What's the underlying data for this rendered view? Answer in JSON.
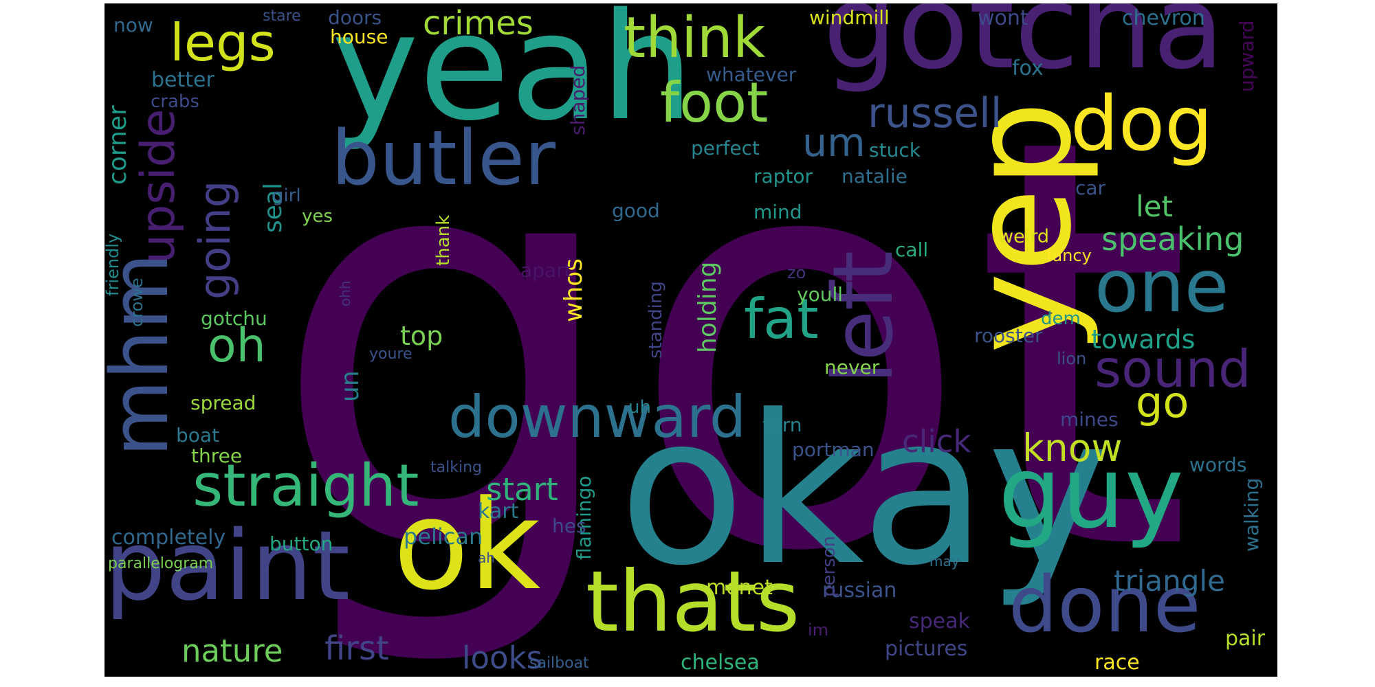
{
  "words": [
    {
      "text": "got",
      "color": "#440154"
    },
    {
      "text": "okay",
      "color": "#26818e"
    },
    {
      "text": "yeah",
      "color": "#1f9e89"
    },
    {
      "text": "yep",
      "color": "#f1e51d"
    },
    {
      "text": "gotcha",
      "color": "#482173"
    },
    {
      "text": "ok",
      "color": "#dde318"
    },
    {
      "text": "paint",
      "color": "#414487"
    },
    {
      "text": "guy",
      "color": "#22a884"
    },
    {
      "text": "left",
      "color": "#472d7b"
    },
    {
      "text": "thats",
      "color": "#b5de2b"
    },
    {
      "text": "butler",
      "color": "#39568c"
    },
    {
      "text": "done",
      "color": "#3e4a89"
    },
    {
      "text": "dog",
      "color": "#fde725"
    },
    {
      "text": "one",
      "color": "#2a788e"
    },
    {
      "text": "mhm",
      "color": "#3b528b"
    },
    {
      "text": "straight",
      "color": "#35b779"
    },
    {
      "text": "downward",
      "color": "#2c728e"
    },
    {
      "text": "think",
      "color": "#a0da39"
    },
    {
      "text": "foot",
      "color": "#86d549"
    },
    {
      "text": "fat",
      "color": "#20a386"
    },
    {
      "text": "sound",
      "color": "#482576"
    },
    {
      "text": "legs",
      "color": "#d2e21b"
    },
    {
      "text": "upside",
      "color": "#481f70"
    },
    {
      "text": "going",
      "color": "#433e85"
    },
    {
      "text": "oh",
      "color": "#4ac16d"
    },
    {
      "text": "russell",
      "color": "#3b528b"
    },
    {
      "text": "um",
      "color": "#33638d"
    },
    {
      "text": "go",
      "color": "#d2e21b"
    },
    {
      "text": "know",
      "color": "#c2df23"
    },
    {
      "text": "crimes",
      "color": "#a2da37"
    },
    {
      "text": "speaking",
      "color": "#4ac16d"
    },
    {
      "text": "triangle",
      "color": "#31688e"
    },
    {
      "text": "first",
      "color": "#414487"
    },
    {
      "text": "looks",
      "color": "#3e4c8a"
    },
    {
      "text": "nature",
      "color": "#6ccd5a"
    },
    {
      "text": "click",
      "color": "#482878"
    },
    {
      "text": "start",
      "color": "#2fb47c"
    },
    {
      "text": "corner",
      "color": "#1e9b8a"
    },
    {
      "text": "seal",
      "color": "#21918c"
    },
    {
      "text": "let",
      "color": "#52c569"
    },
    {
      "text": "top",
      "color": "#7ad151"
    },
    {
      "text": "whos",
      "color": "#fde725"
    },
    {
      "text": "holding",
      "color": "#5ec962"
    },
    {
      "text": "towards",
      "color": "#1fa088"
    },
    {
      "text": "un",
      "color": "#277f8e"
    },
    {
      "text": "completely",
      "color": "#31688e"
    },
    {
      "text": "pelican",
      "color": "#2a788e"
    },
    {
      "text": "kart",
      "color": "#2a788e"
    },
    {
      "text": "chelsea",
      "color": "#2fb47c"
    },
    {
      "text": "pictures",
      "color": "#3f4788"
    },
    {
      "text": "russian",
      "color": "#3b528b"
    },
    {
      "text": "monet",
      "color": "#bddf26"
    },
    {
      "text": "race",
      "color": "#fde725"
    },
    {
      "text": "pair",
      "color": "#b5de2b"
    },
    {
      "text": "speak",
      "color": "#482878"
    },
    {
      "text": "windmill",
      "color": "#d8e219"
    },
    {
      "text": "chevron",
      "color": "#2c728e"
    },
    {
      "text": "wont",
      "color": "#3e4989"
    },
    {
      "text": "doors",
      "color": "#3b528b"
    },
    {
      "text": "now",
      "color": "#31688e"
    },
    {
      "text": "stare",
      "color": "#3b528b"
    },
    {
      "text": "house",
      "color": "#fde725"
    },
    {
      "text": "better",
      "color": "#2c728e"
    },
    {
      "text": "crabs",
      "color": "#3e4a89"
    },
    {
      "text": "whatever",
      "color": "#365d8d"
    },
    {
      "text": "fox",
      "color": "#2c728e"
    },
    {
      "text": "upward",
      "color": "#450457"
    },
    {
      "text": "shaped",
      "color": "#481b6d"
    },
    {
      "text": "perfect",
      "color": "#25848e"
    },
    {
      "text": "stuck",
      "color": "#23898e"
    },
    {
      "text": "raptor",
      "color": "#20938c"
    },
    {
      "text": "natalie",
      "color": "#2e6e8e"
    },
    {
      "text": "car",
      "color": "#3b528b"
    },
    {
      "text": "girl",
      "color": "#355e8d"
    },
    {
      "text": "yes",
      "color": "#7fd34e"
    },
    {
      "text": "good",
      "color": "#31688e"
    },
    {
      "text": "mind",
      "color": "#1f988b"
    },
    {
      "text": "weird",
      "color": "#dde318"
    },
    {
      "text": "fancy",
      "color": "#fde725"
    },
    {
      "text": "call",
      "color": "#29af7f"
    },
    {
      "text": "thank",
      "color": "#b5de2b"
    },
    {
      "text": "friendly",
      "color": "#228c8d"
    },
    {
      "text": "crowe",
      "color": "#2d708e"
    },
    {
      "text": "apart",
      "color": "#481467"
    },
    {
      "text": "zo",
      "color": "#46327e"
    },
    {
      "text": "youll",
      "color": "#63cb5f"
    },
    {
      "text": "dem",
      "color": "#1f958b"
    },
    {
      "text": "ohh",
      "color": "#46327e"
    },
    {
      "text": "rooster",
      "color": "#3b528b"
    },
    {
      "text": "standing",
      "color": "#404588"
    },
    {
      "text": "gotchu",
      "color": "#5ec962"
    },
    {
      "text": "youre",
      "color": "#3b528b"
    },
    {
      "text": "lion",
      "color": "#3b528b"
    },
    {
      "text": "never",
      "color": "#84d44b"
    },
    {
      "text": "uh",
      "color": "#26828e"
    },
    {
      "text": "spread",
      "color": "#9bd93c"
    },
    {
      "text": "turn",
      "color": "#26828e"
    },
    {
      "text": "mines",
      "color": "#3e4989"
    },
    {
      "text": "boat",
      "color": "#2a788e"
    },
    {
      "text": "portman",
      "color": "#3b528b"
    },
    {
      "text": "three",
      "color": "#84d44b"
    },
    {
      "text": "talking",
      "color": "#3b528b"
    },
    {
      "text": "words",
      "color": "#2c728e"
    },
    {
      "text": "flamingo",
      "color": "#1f9a8a"
    },
    {
      "text": "button",
      "color": "#22a884"
    },
    {
      "text": "hes",
      "color": "#3e4a89"
    },
    {
      "text": "person",
      "color": "#423f85"
    },
    {
      "text": "walking",
      "color": "#2d708e"
    },
    {
      "text": "may",
      "color": "#2d708e"
    },
    {
      "text": "parallelogram",
      "color": "#7ad151"
    },
    {
      "text": "ah",
      "color": "#3b528b"
    },
    {
      "text": "im",
      "color": "#481f70"
    },
    {
      "text": "sailboat",
      "color": "#355f8d"
    }
  ]
}
